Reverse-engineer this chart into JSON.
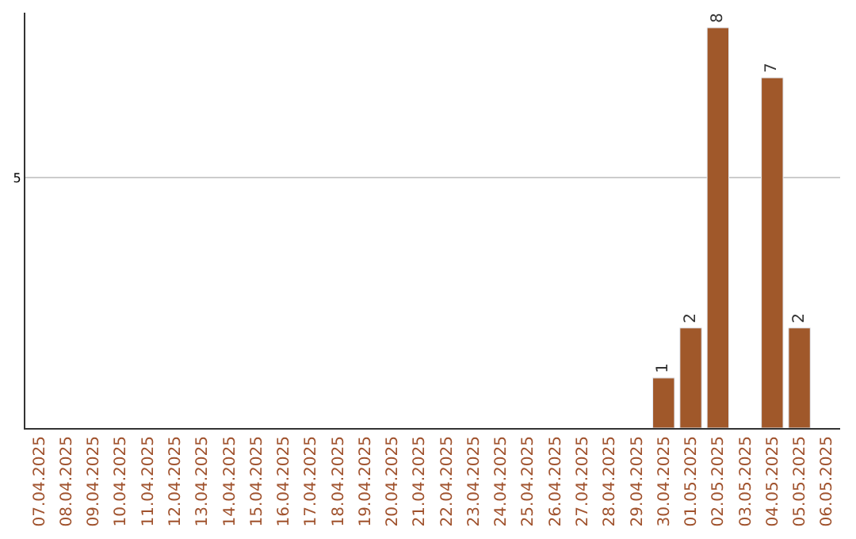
{
  "chart_data": {
    "type": "bar",
    "categories": [
      "07.04.2025",
      "08.04.2025",
      "09.04.2025",
      "10.04.2025",
      "11.04.2025",
      "12.04.2025",
      "13.04.2025",
      "14.04.2025",
      "15.04.2025",
      "16.04.2025",
      "17.04.2025",
      "18.04.2025",
      "19.04.2025",
      "20.04.2025",
      "21.04.2025",
      "22.04.2025",
      "23.04.2025",
      "24.04.2025",
      "25.04.2025",
      "26.04.2025",
      "27.04.2025",
      "28.04.2025",
      "29.04.2025",
      "30.04.2025",
      "01.05.2025",
      "02.05.2025",
      "03.05.2025",
      "04.05.2025",
      "05.05.2025",
      "06.05.2025"
    ],
    "values": [
      null,
      null,
      null,
      null,
      null,
      null,
      null,
      null,
      null,
      null,
      null,
      null,
      null,
      null,
      null,
      null,
      null,
      null,
      null,
      null,
      null,
      null,
      null,
      1,
      2,
      8,
      null,
      7,
      2,
      null
    ],
    "data_labels": true,
    "color": "#a0582a",
    "ylim": [
      0,
      8.3
    ],
    "yticks": [
      5
    ],
    "grid": "y",
    "legend": false
  }
}
